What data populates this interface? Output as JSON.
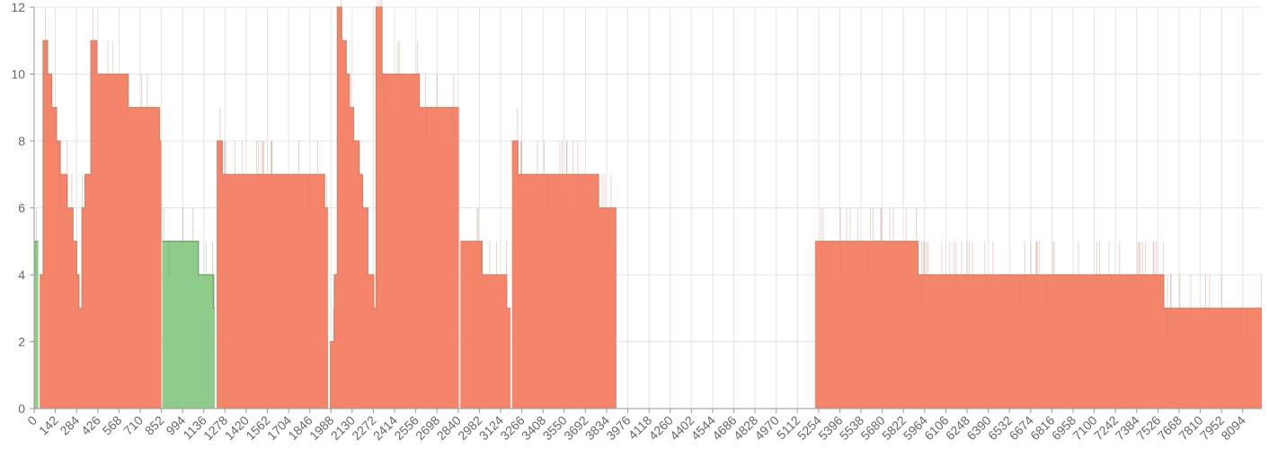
{
  "chart_data": {
    "type": "area",
    "title": "",
    "xlabel": "",
    "ylabel": "",
    "ylim": [
      0,
      12
    ],
    "xlim": [
      0,
      8222
    ],
    "grid": true,
    "legend": "none",
    "y_ticks": [
      "0",
      "2",
      "4",
      "6",
      "8",
      "10",
      "12"
    ],
    "x_ticks": [
      "0",
      "142",
      "284",
      "426",
      "568",
      "710",
      "852",
      "994",
      "1136",
      "1278",
      "1420",
      "1562",
      "1704",
      "1846",
      "1988",
      "2130",
      "2272",
      "2414",
      "2556",
      "2698",
      "2840",
      "2982",
      "3124",
      "3266",
      "3408",
      "3550",
      "3692",
      "3834",
      "3976",
      "4118",
      "4260",
      "4402",
      "4544",
      "4686",
      "4828",
      "4970",
      "5112",
      "5254",
      "5396",
      "5538",
      "5680",
      "5822",
      "5964",
      "6106",
      "6248",
      "6390",
      "6532",
      "6674",
      "6816",
      "6958",
      "7100",
      "7242",
      "7384",
      "7526",
      "7668",
      "7810",
      "7952",
      "8094"
    ],
    "colors": {
      "orange": "#f4846a",
      "green": "#8fcb8a",
      "orange_noise": "#c8856f",
      "green_noise": "#6f9a6a",
      "grid": "#e3e3e3",
      "axis": "#9a9a9a"
    },
    "series": [
      {
        "color": "orange",
        "x": [
          0,
          30
        ],
        "y": [
          0,
          0
        ]
      },
      {
        "color": "green",
        "x": [
          0,
          28
        ],
        "y": [
          5,
          5
        ]
      },
      {
        "color": "orange",
        "x": [
          37,
          60,
          60,
          90,
          90,
          118,
          118,
          150,
          150,
          175,
          175,
          220,
          220,
          260,
          260,
          285,
          285,
          300,
          300,
          320,
          320,
          340,
          340,
          380,
          380,
          420,
          420,
          630,
          630,
          840,
          840,
          852
        ],
        "y": [
          4,
          4,
          11,
          11,
          10,
          10,
          9,
          9,
          8,
          8,
          7,
          7,
          6,
          6,
          5,
          5,
          4,
          4,
          3,
          3,
          6,
          6,
          7,
          7,
          11,
          11,
          10,
          10,
          9,
          9,
          8,
          8
        ]
      },
      {
        "color": "green",
        "x": [
          858,
          1100,
          1100,
          1200,
          1200,
          1210
        ],
        "y": [
          5,
          5,
          4,
          4,
          3,
          3
        ]
      },
      {
        "color": "orange",
        "x": [
          1222,
          1260,
          1260,
          1650,
          1650,
          1945,
          1945,
          1968
        ],
        "y": [
          8,
          8,
          7,
          7,
          7,
          7,
          6,
          6
        ]
      },
      {
        "color": "orange",
        "x": [
          1980,
          2010,
          2010,
          2030,
          2030,
          2060,
          2060,
          2090,
          2090,
          2110,
          2110,
          2140,
          2140,
          2175,
          2175,
          2200,
          2200,
          2235,
          2235,
          2275,
          2275,
          2290,
          2290,
          2330,
          2330,
          2580,
          2580,
          2845
        ],
        "y": [
          2,
          2,
          4,
          4,
          12,
          12,
          11,
          11,
          10,
          10,
          9,
          9,
          8,
          8,
          7,
          7,
          6,
          6,
          4,
          4,
          3,
          3,
          12,
          12,
          10,
          10,
          9,
          9
        ]
      },
      {
        "color": "orange",
        "x": [
          2855,
          3000,
          3000,
          3165,
          3165,
          3190
        ],
        "y": [
          5,
          5,
          4,
          4,
          3,
          3
        ]
      },
      {
        "color": "orange",
        "x": [
          3200,
          3240,
          3240,
          3580,
          3580,
          3780,
          3780,
          3900
        ],
        "y": [
          8,
          8,
          7,
          7,
          7,
          7,
          6,
          6
        ]
      },
      {
        "color": "orange",
        "x": [
          5230,
          5920,
          5920,
          6100,
          6100,
          7565,
          7565,
          8222
        ],
        "y": [
          5,
          5,
          4,
          4,
          4,
          4,
          3,
          3
        ]
      }
    ]
  }
}
